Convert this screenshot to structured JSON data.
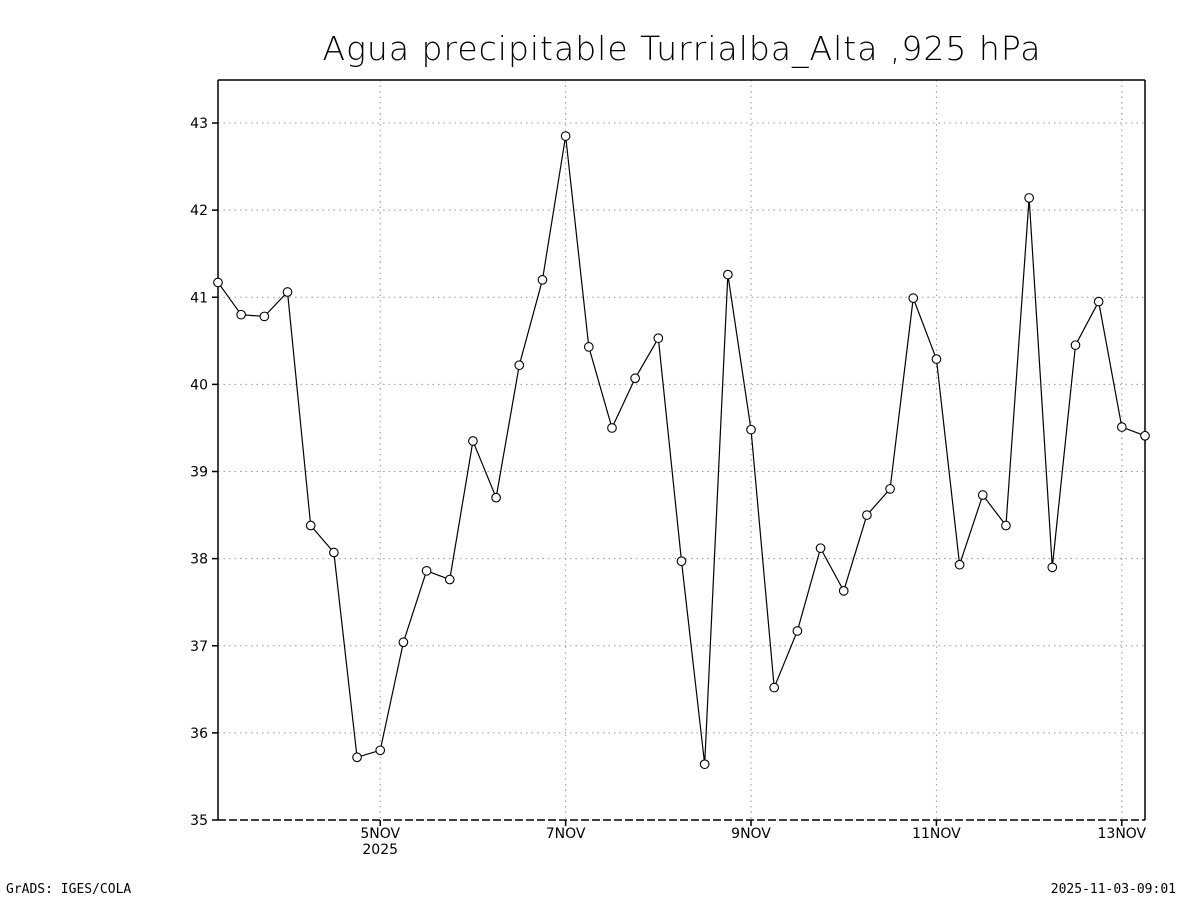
{
  "chart_data": {
    "type": "line",
    "title": "Agua precipitable Turrialba_Alta ,925 hPa",
    "xlabel": "",
    "ylabel": "",
    "ylim": [
      35,
      43.5
    ],
    "yticks": [
      35,
      36,
      37,
      38,
      39,
      40,
      41,
      42,
      43
    ],
    "x_start": "2025-11-03T06:00",
    "x_step_hours": 6,
    "xlim_days": [
      3.25,
      13.25
    ],
    "xticks": [
      {
        "day": 5,
        "label": "5NOV",
        "sublabel": "2025"
      },
      {
        "day": 7,
        "label": "7NOV"
      },
      {
        "day": 9,
        "label": "9NOV"
      },
      {
        "day": 11,
        "label": "11NOV"
      },
      {
        "day": 13,
        "label": "13NOV"
      }
    ],
    "grid": true,
    "series": [
      {
        "name": "Agua precipitable",
        "color": "#000000",
        "marker": "open-circle",
        "values": [
          41.17,
          40.8,
          40.78,
          41.06,
          38.38,
          38.07,
          35.72,
          35.8,
          37.04,
          37.86,
          37.76,
          39.35,
          38.7,
          40.22,
          41.2,
          42.85,
          40.43,
          39.5,
          40.07,
          40.53,
          37.97,
          35.64,
          41.26,
          39.48,
          36.52,
          37.17,
          38.12,
          37.63,
          38.5,
          38.8,
          40.99,
          40.29,
          37.93,
          38.73,
          38.38,
          42.14,
          37.9,
          40.45,
          40.95,
          39.51,
          39.41
        ]
      }
    ]
  },
  "footer": {
    "left": "GrADS: IGES/COLA",
    "right": "2025-11-03-09:01"
  }
}
